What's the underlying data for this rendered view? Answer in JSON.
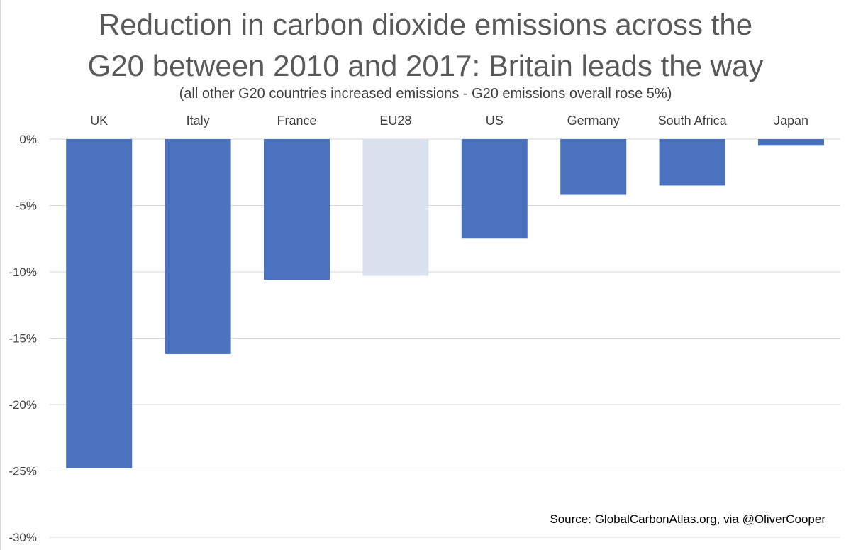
{
  "chart_data": {
    "type": "bar",
    "title_lines": [
      "Reduction in carbon dioxide emissions across the",
      "G20 between 2010 and 2017: Britain leads the way"
    ],
    "subtitle": "(all other G20 countries increased emissions - G20 emissions overall rose 5%)",
    "source": "Source: GlobalCarbonAtlas.org, via @OliverCooper",
    "categories": [
      "UK",
      "Italy",
      "France",
      "EU28",
      "US",
      "Germany",
      "South Africa",
      "Japan"
    ],
    "values": [
      -24.8,
      -16.2,
      -10.6,
      -10.3,
      -7.5,
      -4.2,
      -3.5,
      -0.5
    ],
    "bar_colors": [
      "#4a72bf",
      "#4a72bf",
      "#4a72bf",
      "#dae2f0",
      "#4a72bf",
      "#4a72bf",
      "#4a72bf",
      "#4a72bf"
    ],
    "y_ticks": [
      0,
      -5,
      -10,
      -15,
      -20,
      -25,
      -30
    ],
    "y_tick_labels": [
      "0%",
      "-5%",
      "-10%",
      "-15%",
      "-20%",
      "-25%",
      "-30%"
    ],
    "ylim": [
      -30,
      0
    ],
    "grid": true,
    "category_labels_position": "top",
    "colors": {
      "bar": "#4a72bf",
      "highlight_bar": "#dae2f0",
      "grid": "#d9d9d9",
      "axis_text": "#404040"
    }
  }
}
